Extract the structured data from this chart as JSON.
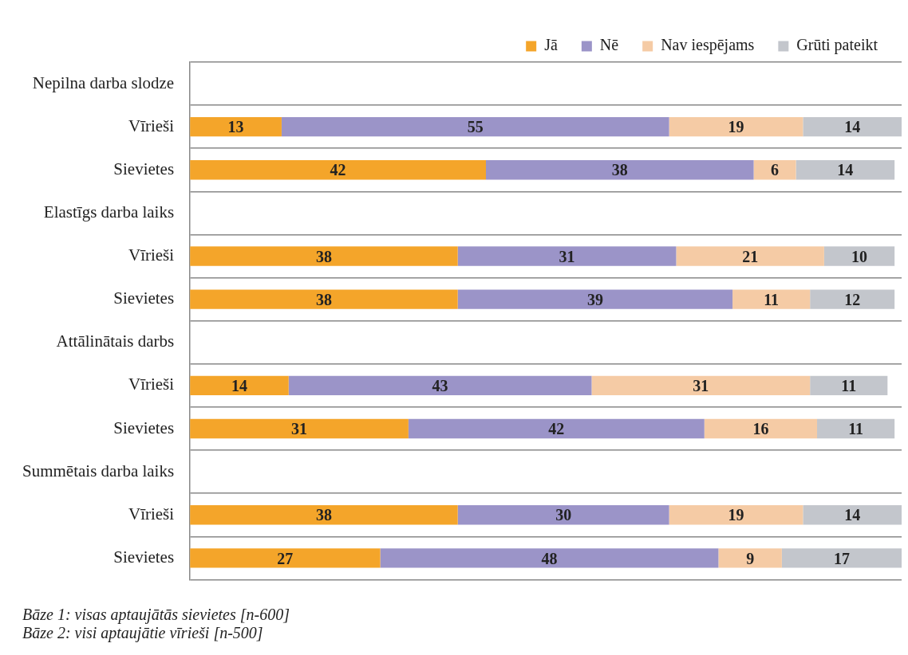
{
  "chart_data": {
    "type": "bar",
    "orientation": "horizontal",
    "stacked": true,
    "categories": [
      "Nepilna darba slodze",
      "Vīrieši",
      "Sievietes",
      "Elastīgs darba laiks",
      "Vīrieši",
      "Sievietes",
      "Attālinātais darbs",
      "Vīrieši",
      "Sievietes",
      "Summētais darba laiks",
      "Vīrieši",
      "Sievietes"
    ],
    "series": [
      {
        "name": "Jā",
        "color": "#f4a52a",
        "values": [
          null,
          13,
          42,
          null,
          38,
          38,
          null,
          14,
          31,
          null,
          38,
          27
        ]
      },
      {
        "name": "Nē",
        "color": "#9b94c8",
        "values": [
          null,
          55,
          38,
          null,
          31,
          39,
          null,
          43,
          42,
          null,
          30,
          48
        ]
      },
      {
        "name": "Nav iespējams",
        "color": "#f5cba5",
        "values": [
          null,
          19,
          6,
          null,
          21,
          11,
          null,
          31,
          16,
          null,
          19,
          9
        ]
      },
      {
        "name": "Grūti pateikt",
        "color": "#c3c6cc",
        "values": [
          null,
          14,
          14,
          null,
          10,
          12,
          null,
          11,
          11,
          null,
          14,
          17
        ]
      }
    ],
    "xlim": [
      0,
      101
    ],
    "tick_labels": "y",
    "grid": "y",
    "legend": "top right",
    "data_labels": true,
    "annotations": [
      "Bāze 1: visas aptaujātās sievietes [n-600]",
      "Bāze 2: visi aptaujātie vīrieši [n-500]"
    ]
  }
}
